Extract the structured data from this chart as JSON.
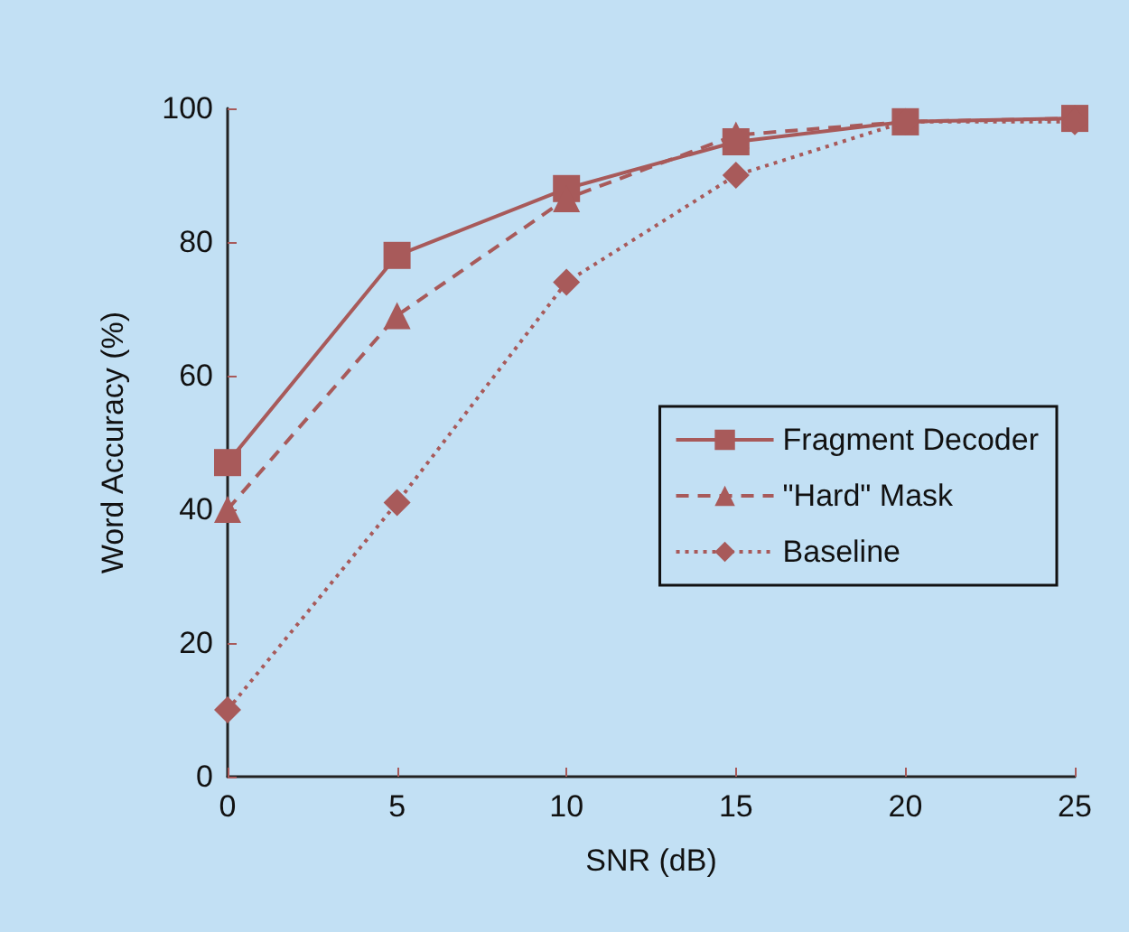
{
  "chart_data": {
    "type": "line",
    "xlabel": "SNR (dB)",
    "ylabel": "Word Accuracy (%)",
    "x": [
      0,
      5,
      10,
      15,
      20,
      25
    ],
    "xlim": [
      0,
      25
    ],
    "xticks": [
      0,
      5,
      10,
      15,
      20,
      25
    ],
    "ylim": [
      0,
      100
    ],
    "yticks": [
      0,
      20,
      40,
      60,
      80,
      100
    ],
    "legend": "right",
    "series": [
      {
        "name": "Fragment Decoder",
        "color": "#a85a5a",
        "marker": "square",
        "line_style": "solid",
        "values": [
          47,
          78,
          88,
          95,
          98,
          98.5
        ]
      },
      {
        "name": "\"Hard\" Mask",
        "color": "#a85a5a",
        "marker": "triangle",
        "line_style": "dashed",
        "values": [
          40,
          69,
          86.5,
          96,
          98,
          98.5
        ]
      },
      {
        "name": "Baseline",
        "color": "#a85a5a",
        "marker": "diamond",
        "line_style": "dotted",
        "values": [
          10,
          41,
          74,
          90,
          98,
          98
        ]
      }
    ]
  }
}
